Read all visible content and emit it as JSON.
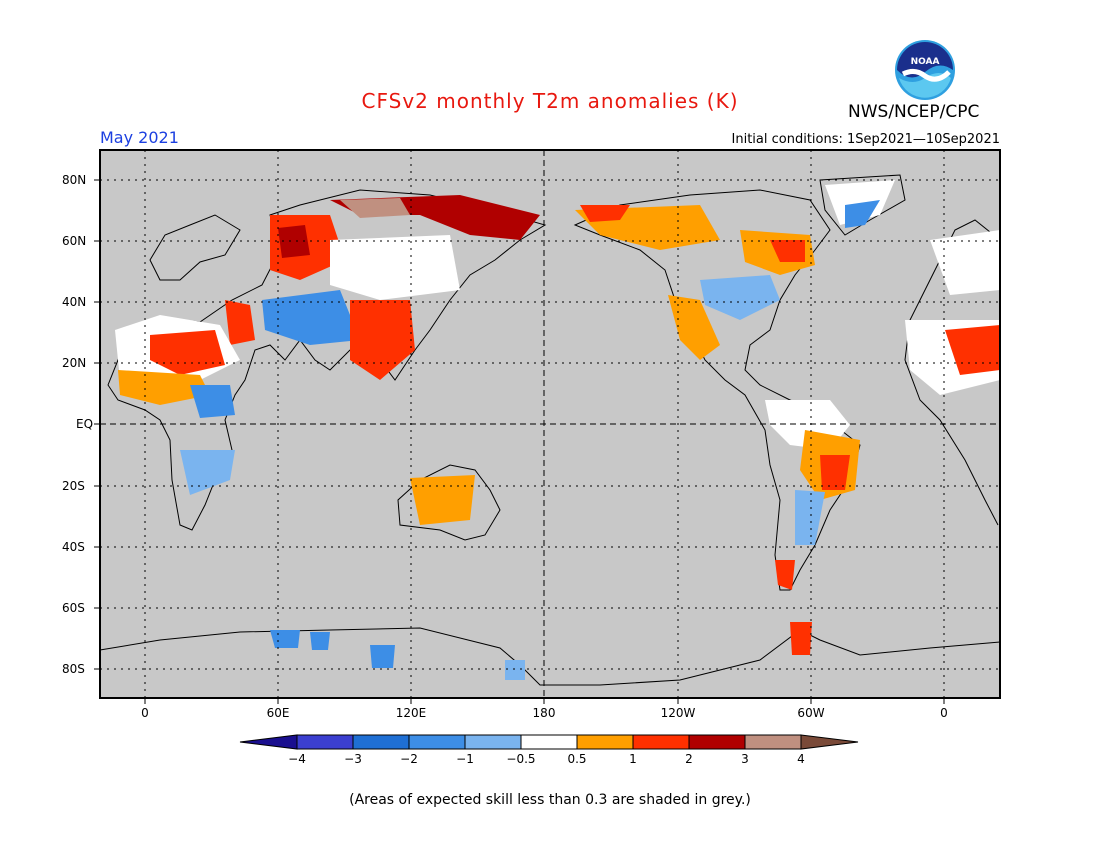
{
  "title": "CFSv2 monthly T2m anomalies (K)",
  "agency": "NWS/NCEP/CPC",
  "logo_text": "NOAA",
  "valid_month": "May 2021",
  "initial_conditions": "Initial conditions: 1Sep2021—10Sep2021",
  "skill_note": "(Areas of expected skill less than 0.3 are shaded in grey.)",
  "lat_labels": [
    "80N",
    "60N",
    "40N",
    "20N",
    "EQ",
    "20S",
    "40S",
    "60S",
    "80S"
  ],
  "lon_labels": [
    "0",
    "60E",
    "120E",
    "180",
    "120W",
    "60W",
    "0"
  ],
  "colorbar": {
    "labels": [
      "−4",
      "−3",
      "−2",
      "−1",
      "−0.5",
      "0.5",
      "1",
      "2",
      "3",
      "4"
    ],
    "colors": [
      "#1a0f8f",
      "#3b3fd0",
      "#1f6fd4",
      "#3d8ee6",
      "#7ab4ef",
      "#ffffff",
      "#ff9f00",
      "#ff3000",
      "#b00000",
      "#c09080",
      "#7a4a38"
    ]
  },
  "colors": {
    "skill_grey": "#c8c8c8",
    "title_red": "#e8180f",
    "month_blue": "#1b3fe0"
  }
}
